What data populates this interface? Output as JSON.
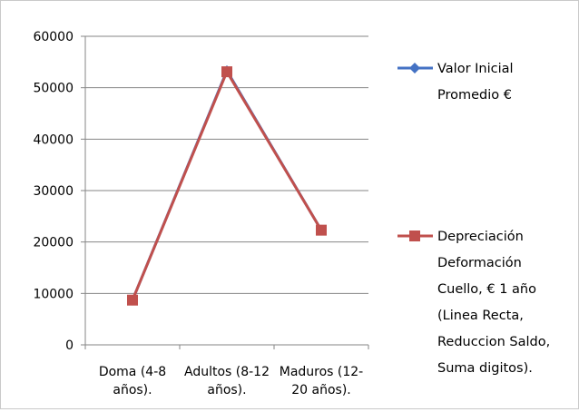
{
  "chart_data": {
    "type": "line",
    "categories": [
      [
        "Doma (4-8",
        "años)."
      ],
      [
        "Adultos (8-12",
        "años)."
      ],
      [
        "Maduros (12-",
        "20 años)."
      ]
    ],
    "series": [
      {
        "name": "Valor Inicial Promedio €",
        "legend_lines": [
          "Valor Inicial",
          "Promedio €"
        ],
        "values": [
          8700,
          53300,
          22300
        ],
        "color": "#4472c4",
        "marker": "diamond"
      },
      {
        "name": "Depreciación Deformación Cuello, € 1 año (Linea Recta, Reduccion Saldo, Suma digitos).",
        "legend_lines": [
          "Depreciación",
          "Deformación",
          "Cuello, €  1 año",
          "(Linea Recta,",
          "Reduccion Saldo,",
          "Suma digitos)."
        ],
        "values": [
          8700,
          53100,
          22300
        ],
        "color": "#c0504d",
        "marker": "square"
      }
    ],
    "ylim": [
      0,
      60000
    ],
    "yticks": [
      "0",
      "10000",
      "20000",
      "30000",
      "40000",
      "50000",
      "60000"
    ],
    "grid": true,
    "legend": "right",
    "title": "",
    "xlabel": "",
    "ylabel": ""
  }
}
